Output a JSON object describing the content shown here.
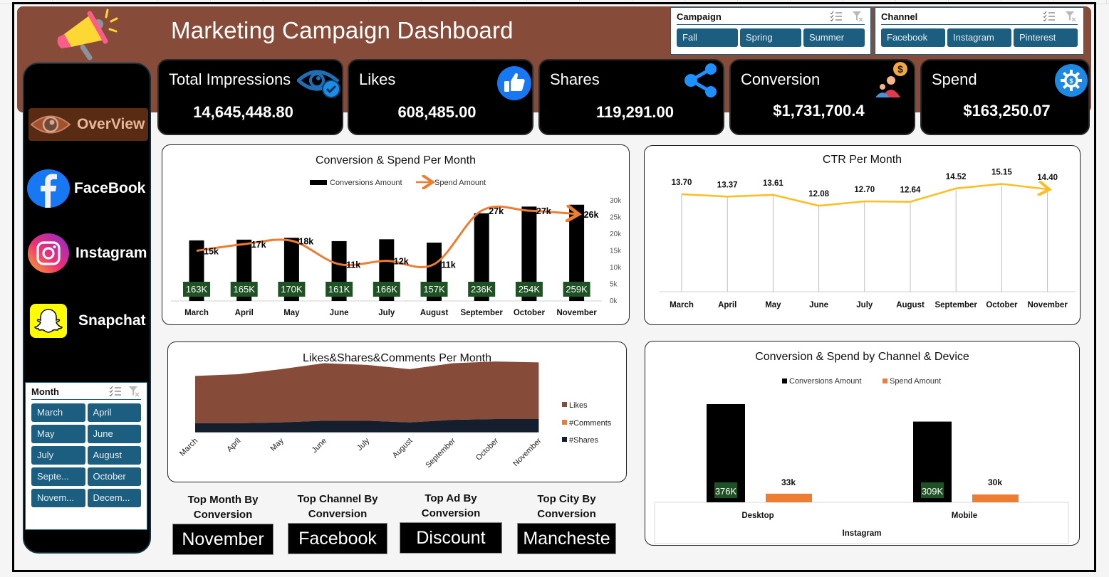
{
  "header": {
    "title": "Marketing Campaign Dashboard"
  },
  "slicers": {
    "campaign": {
      "title": "Campaign",
      "items": [
        "Fall",
        "Spring",
        "Summer"
      ]
    },
    "channel": {
      "title": "Channel",
      "items": [
        "Facebook",
        "Instagram",
        "Pinterest"
      ]
    },
    "month": {
      "title": "Month",
      "items": [
        "March",
        "April",
        "May",
        "June",
        "July",
        "August",
        "Septe...",
        "October",
        "Novem...",
        "Decem..."
      ]
    }
  },
  "sidebar": {
    "items": [
      {
        "label": "OverView",
        "icon": "eye-icon"
      },
      {
        "label": "FaceBook",
        "icon": "facebook-icon"
      },
      {
        "label": "Instagram",
        "icon": "instagram-icon"
      },
      {
        "label": "Snapchat",
        "icon": "snapchat-icon"
      }
    ]
  },
  "kpis": [
    {
      "label": "Total Impressions",
      "value": "14,645,448.80",
      "icon": "eye-check-icon"
    },
    {
      "label": "Likes",
      "value": "608,485.00",
      "icon": "thumbs-up-icon"
    },
    {
      "label": "Shares",
      "value": "119,291.00",
      "icon": "share-icon"
    },
    {
      "label": "Conversion",
      "value": "$1,731,700.4",
      "icon": "conversion-people-icon"
    },
    {
      "label": "Spend",
      "value": "$163,250.07",
      "icon": "spend-gear-icon"
    }
  ],
  "colors": {
    "brown": "#874b3a",
    "slicer_blue": "#1b5e80",
    "bar_black": "#000000",
    "spend_orange": "#ed7d31",
    "ctr_yellow": "#fbbf24",
    "label_green": "#1e5124",
    "shares_navy": "#141e2c"
  },
  "top_stats": [
    {
      "label": "Top Month By Conversion",
      "value": "November"
    },
    {
      "label": "Top Channel By Conversion",
      "value": "Facebook"
    },
    {
      "label": "Top Ad By Conversion",
      "value": "Discount"
    },
    {
      "label": "Top City By Conversion",
      "value": "Mancheste"
    }
  ],
  "chart_data": [
    {
      "id": "conv_spend_month",
      "type": "bar",
      "title": "Conversion & Spend Per Month",
      "categories": [
        "March",
        "April",
        "May",
        "June",
        "July",
        "August",
        "September",
        "October",
        "November"
      ],
      "series": [
        {
          "name": "Conversions Amount",
          "type": "bar",
          "values": [
            163000,
            165000,
            170000,
            161000,
            166000,
            157000,
            236000,
            254000,
            259000
          ],
          "labels": [
            "163K",
            "165K",
            "170K",
            "161K",
            "166K",
            "157K",
            "236K",
            "254K",
            "259K"
          ]
        },
        {
          "name": "Spend Amount",
          "type": "line",
          "axis": "secondary",
          "values": [
            15000,
            17000,
            18000,
            11000,
            12000,
            11000,
            27000,
            27000,
            26000
          ],
          "labels": [
            "15k",
            "17k",
            "18k",
            "11k",
            "12k",
            "11k",
            "27k",
            "27k",
            "26k"
          ]
        }
      ],
      "primary_ylim": [
        0,
        270000
      ],
      "secondary_ylim": [
        0,
        30000
      ],
      "secondary_ticks": [
        "0k",
        "5k",
        "10k",
        "15k",
        "20k",
        "25k",
        "30k"
      ],
      "legend": "top"
    },
    {
      "id": "ctr_month",
      "type": "line",
      "title": "CTR Per Month",
      "categories": [
        "March",
        "April",
        "May",
        "June",
        "July",
        "August",
        "September",
        "October",
        "November"
      ],
      "series": [
        {
          "name": "CTR",
          "values": [
            13.7,
            13.37,
            13.61,
            12.08,
            12.7,
            12.64,
            14.52,
            15.15,
            14.4
          ],
          "labels": [
            "13.70",
            "13.37",
            "13.61",
            "12.08",
            "12.70",
            "12.64",
            "14.52",
            "15.15",
            "14.40"
          ]
        }
      ],
      "ylim": [
        0,
        16.5
      ],
      "grid": "vertical drop lines"
    },
    {
      "id": "engagement_month",
      "type": "area",
      "title": "Likes&Shares&Comments Per Month",
      "categories": [
        "March",
        "April",
        "May",
        "June",
        "July",
        "August",
        "September",
        "October",
        "November"
      ],
      "series": [
        {
          "name": "Likes",
          "values": [
            56000,
            58000,
            63000,
            68000,
            66000,
            63000,
            67000,
            68000,
            67000
          ]
        },
        {
          "name": "#Comments",
          "values": [
            0,
            0,
            0,
            0,
            0,
            0,
            0,
            0,
            0
          ]
        },
        {
          "name": "#Shares",
          "values": [
            11000,
            11000,
            12000,
            14000,
            14000,
            12000,
            15000,
            16000,
            16000
          ]
        }
      ],
      "stacked": true,
      "legend": "right"
    },
    {
      "id": "conv_spend_device",
      "type": "bar",
      "title": "Conversion & Spend by Channel & Device",
      "categories": [
        "Desktop",
        "Mobile"
      ],
      "group_label": "Instagram",
      "series": [
        {
          "name": "Conversions Amount",
          "values": [
            376000,
            309000
          ],
          "labels": [
            "376K",
            "309K"
          ]
        },
        {
          "name": "Spend Amount",
          "values": [
            33000,
            30000
          ],
          "labels": [
            "33k",
            "30k"
          ]
        }
      ],
      "legend": "top"
    }
  ]
}
